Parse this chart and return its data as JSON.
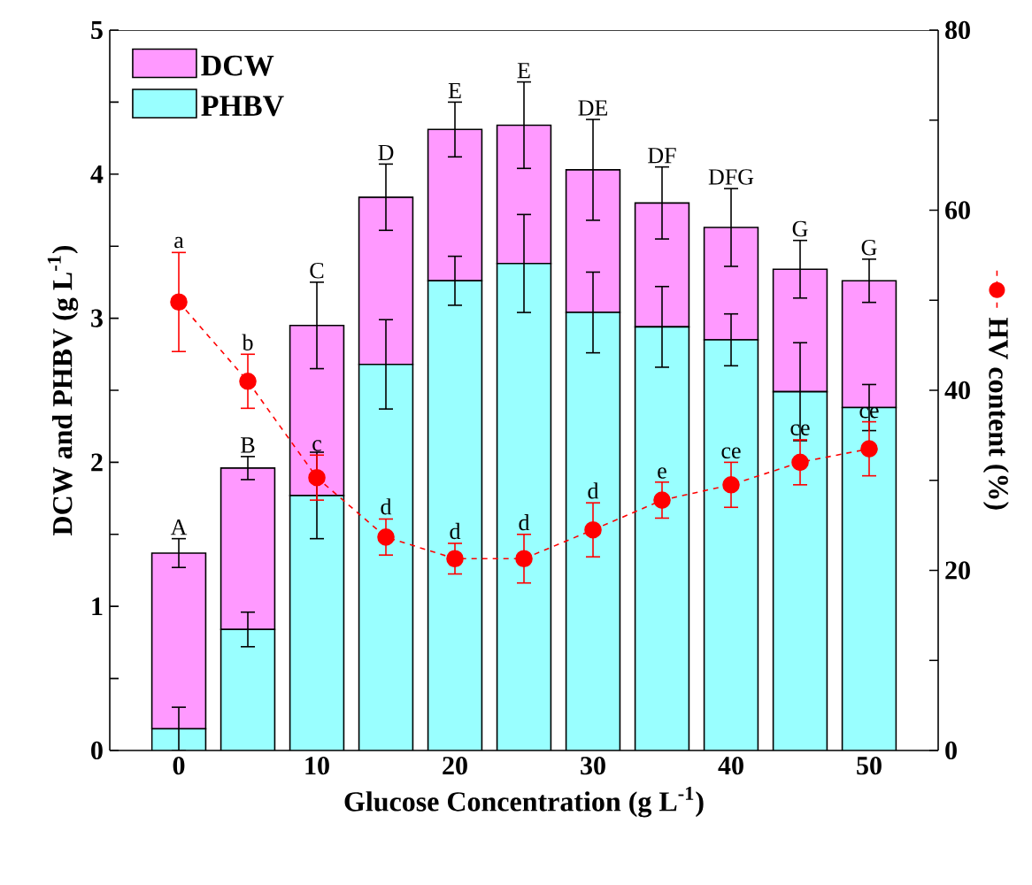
{
  "chart_data": {
    "type": "bar",
    "stacked": true,
    "xlabel": "Glucose Concentration (g L$^{-1}$)",
    "ylabel": "DCW and PHBV (g L$^{-1}$)",
    "y2label": "HV content (%)",
    "x": [
      0,
      5,
      10,
      15,
      20,
      25,
      30,
      35,
      40,
      45,
      50
    ],
    "xlim": [
      -5,
      55
    ],
    "xticks": [
      0,
      {
        "value": 5,
        "label": null
      },
      10,
      {
        "value": 15,
        "label": null
      },
      20,
      {
        "value": 25,
        "label": null
      },
      30,
      {
        "value": 35,
        "label": null
      },
      40,
      {
        "value": 45,
        "label": null
      },
      50
    ],
    "ylim": [
      0,
      5
    ],
    "yticks": [
      0,
      {
        "value": 0.5,
        "label": null
      },
      1,
      {
        "value": 1.5,
        "label": null
      },
      2,
      {
        "value": 2.5,
        "label": null
      },
      3,
      {
        "value": 3.5,
        "label": null
      },
      4,
      {
        "value": 4.5,
        "label": null
      },
      5
    ],
    "y2lim": [
      0,
      80
    ],
    "y2ticks": [
      0,
      {
        "value": 10,
        "label": null
      },
      20,
      {
        "value": 30,
        "label": null
      },
      40,
      {
        "value": 50,
        "label": null
      },
      60,
      {
        "value": 70,
        "label": null
      },
      80
    ],
    "legend": "top left",
    "grid": false,
    "series": [
      {
        "name": "PHBV",
        "color": "#99ffff",
        "values": [
          0.15,
          0.84,
          1.77,
          2.68,
          3.26,
          3.38,
          3.04,
          2.94,
          2.85,
          2.49,
          2.38
        ],
        "errors": [
          0.15,
          0.12,
          0.3,
          0.31,
          0.17,
          0.34,
          0.28,
          0.28,
          0.18,
          0.34,
          0.16
        ]
      },
      {
        "name": "DCW",
        "color": "#ff99ff",
        "values": [
          1.22,
          1.12,
          1.18,
          1.16,
          1.05,
          0.96,
          0.99,
          0.86,
          0.78,
          0.85,
          0.88
        ],
        "errors": [
          0.1,
          0.08,
          0.3,
          0.23,
          0.19,
          0.3,
          0.35,
          0.25,
          0.27,
          0.2,
          0.15
        ]
      },
      {
        "type": "line",
        "axis": "y2",
        "color": "#ff0000",
        "marker": "circle",
        "line_style": "dashed",
        "values": [
          49.8,
          41,
          30.3,
          23.7,
          21.3,
          21.3,
          24.5,
          27.8,
          29.5,
          32,
          33.5
        ],
        "errors": [
          5.5,
          3,
          2.5,
          2,
          1.7,
          2.7,
          3,
          2,
          2.5,
          2.5,
          3
        ]
      }
    ],
    "annotations": [
      {
        "text": "A",
        "x": 0,
        "y": 1.47
      },
      {
        "text": "B",
        "x": 5,
        "y": 2.04
      },
      {
        "text": "C",
        "x": 10,
        "y": 3.25
      },
      {
        "text": "D",
        "x": 15,
        "y": 4.07
      },
      {
        "text": "E",
        "x": 20,
        "y": 4.5
      },
      {
        "text": "E",
        "x": 25,
        "y": 4.64
      },
      {
        "text": "DE",
        "x": 30,
        "y": 4.38
      },
      {
        "text": "DF",
        "x": 35,
        "y": 4.05
      },
      {
        "text": "DFG",
        "x": 40,
        "y": 3.9
      },
      {
        "text": "G",
        "x": 45,
        "y": 3.54
      },
      {
        "text": "G",
        "x": 50,
        "y": 3.41
      },
      {
        "text": "a",
        "x": 0,
        "y": 3.46
      },
      {
        "text": "b",
        "x": 5,
        "y": 2.75
      },
      {
        "text": "c",
        "x": 10,
        "y": 2.05
      },
      {
        "text": "d",
        "x": 15,
        "y": 1.61
      },
      {
        "text": "d",
        "x": 20,
        "y": 1.44
      },
      {
        "text": "d",
        "x": 25,
        "y": 1.5
      },
      {
        "text": "d",
        "x": 30,
        "y": 1.72
      },
      {
        "text": "e",
        "x": 35,
        "y": 1.86
      },
      {
        "text": "ce",
        "x": 40,
        "y": 2.0
      },
      {
        "text": "ce",
        "x": 45,
        "y": 2.16
      },
      {
        "text": "ce",
        "x": 50,
        "y": 2.28
      }
    ]
  }
}
